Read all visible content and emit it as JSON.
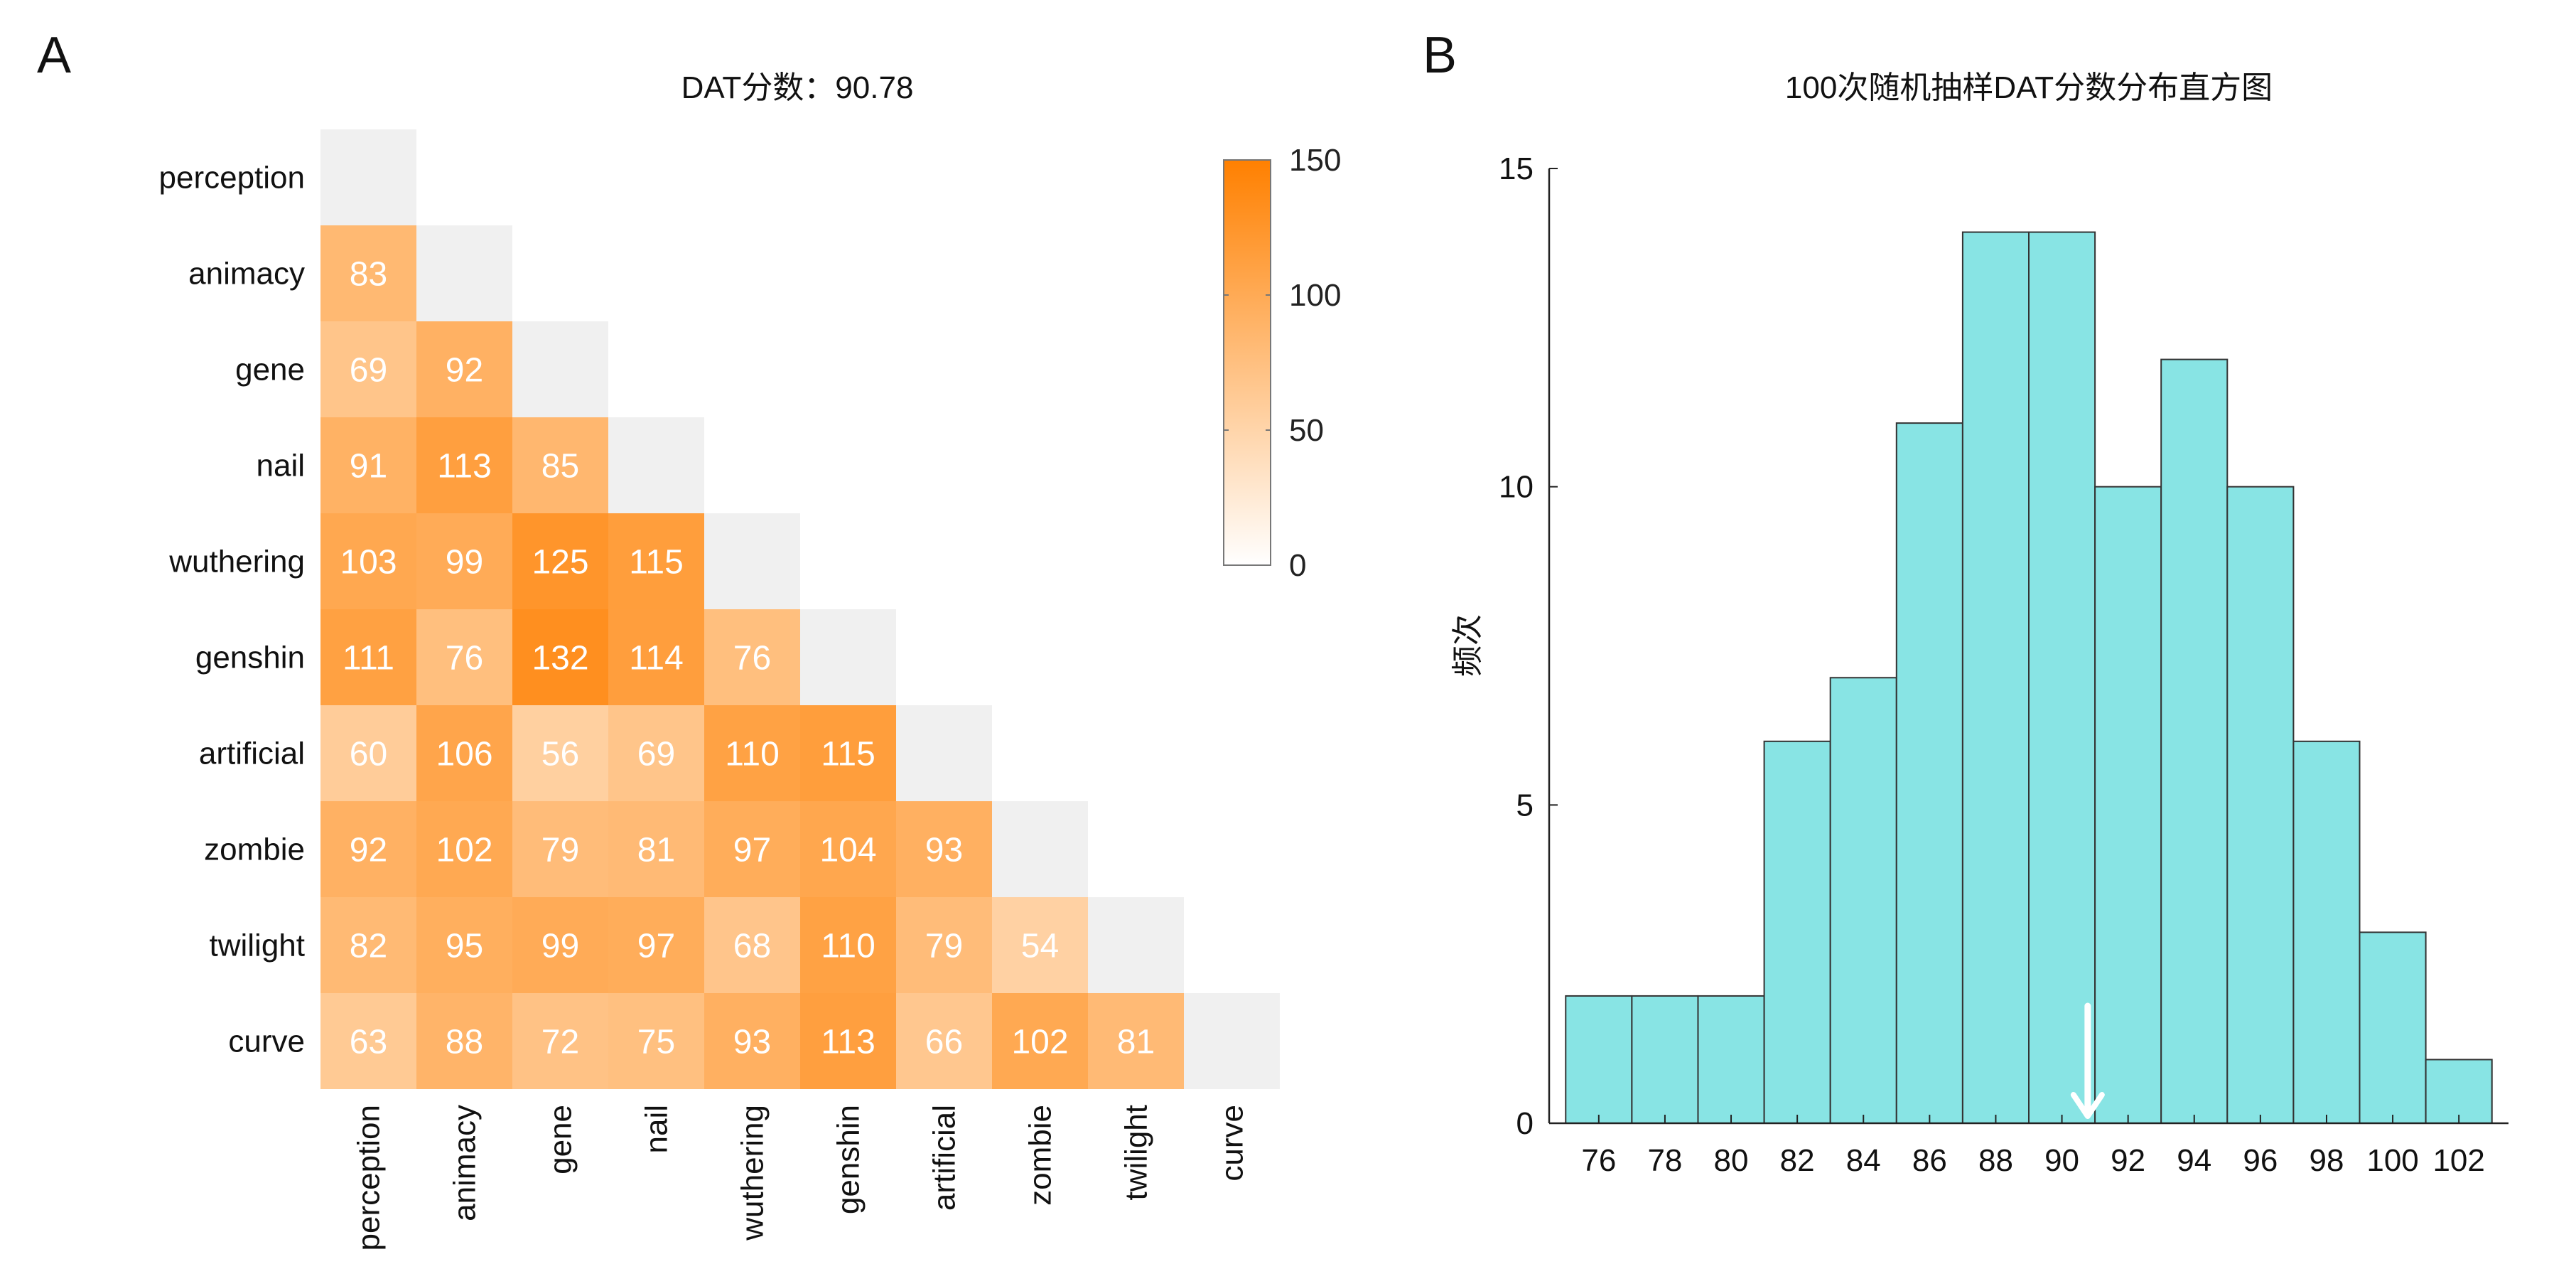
{
  "panels": {
    "a": {
      "letter": "A"
    },
    "b": {
      "letter": "B"
    }
  },
  "chart_data": [
    {
      "type": "heatmap",
      "title": "DAT分数：90.78",
      "labels": [
        "perception",
        "animacy",
        "gene",
        "nail",
        "wuthering",
        "genshin",
        "artificial",
        "zombie",
        "twilight",
        "curve"
      ],
      "values": [
        [],
        [
          83
        ],
        [
          69,
          92
        ],
        [
          91,
          113,
          85
        ],
        [
          103,
          99,
          125,
          115
        ],
        [
          111,
          76,
          132,
          114,
          76
        ],
        [
          60,
          106,
          56,
          69,
          110,
          115
        ],
        [
          92,
          102,
          79,
          81,
          97,
          104,
          93
        ],
        [
          82,
          95,
          99,
          97,
          68,
          110,
          79,
          54
        ],
        [
          63,
          88,
          72,
          75,
          93,
          113,
          66,
          102,
          81
        ]
      ],
      "colorbar": {
        "min": 0,
        "max": 150,
        "ticks": [
          0,
          50,
          100,
          150
        ]
      },
      "colors": {
        "low": "#ffffff",
        "high": "#ff8000",
        "diagonal": "#f0f0f0"
      }
    },
    {
      "type": "bar",
      "title": "100次随机抽样DAT分数分布直方图",
      "xlabel": "",
      "ylabel": "频次",
      "x_ticks": [
        76,
        78,
        80,
        82,
        84,
        86,
        88,
        90,
        92,
        94,
        96,
        98,
        100,
        102
      ],
      "bin_width": 2,
      "values": [
        2,
        2,
        2,
        6,
        7,
        11,
        14,
        14,
        10,
        12,
        10,
        6,
        3,
        1
      ],
      "y_ticks": [
        0,
        5,
        10,
        15
      ],
      "ylim": [
        0,
        15
      ],
      "xlim": [
        74.5,
        103.5
      ],
      "marker_x": 90.78,
      "bar_color": "#88e4e4"
    }
  ]
}
